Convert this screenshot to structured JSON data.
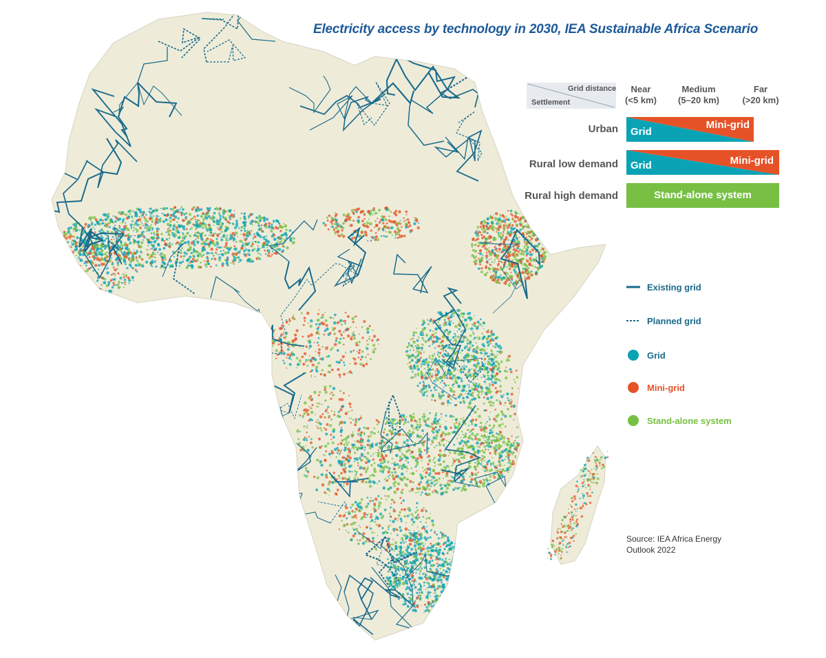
{
  "title": "Electricity access by technology in 2030, IEA Sustainable Africa Scenario",
  "matrix": {
    "header_top": "Grid distance",
    "header_bottom": "Settlement",
    "columns": [
      {
        "line1": "Near",
        "line2": "(<5 km)"
      },
      {
        "line1": "Medium",
        "line2": "(5–20 km)"
      },
      {
        "line1": "Far",
        "line2": "(>20 km)"
      }
    ],
    "rows": [
      {
        "label": "Urban",
        "left_text": "Grid",
        "right_text": "Mini-grid"
      },
      {
        "label": "Rural low demand",
        "left_text": "Grid",
        "right_text": "Mini-grid"
      },
      {
        "label": "Rural high demand",
        "full_text": "Stand-alone system"
      }
    ]
  },
  "legend": {
    "items": [
      {
        "label": "Existing grid",
        "symbol": "solid-line",
        "color": "#1a6a8c"
      },
      {
        "label": "Planned grid",
        "symbol": "dashed-line",
        "color": "#1a6a8c"
      },
      {
        "label": "Grid",
        "symbol": "dot",
        "color": "#0aa3b5"
      },
      {
        "label": "Mini-grid",
        "symbol": "dot",
        "color": "#e65228"
      },
      {
        "label": "Stand-alone system",
        "symbol": "dot",
        "color": "#77c043"
      }
    ]
  },
  "source": {
    "line1": "Source: IEA Africa Energy",
    "line2": "Outlook 2022"
  },
  "colors": {
    "land": "#eeecd9",
    "grid_line": "#1a6a8c",
    "grid": "#0aa3b5",
    "mini_grid": "#e65228",
    "stand_alone": "#77c043",
    "title": "#1d5a9a"
  }
}
